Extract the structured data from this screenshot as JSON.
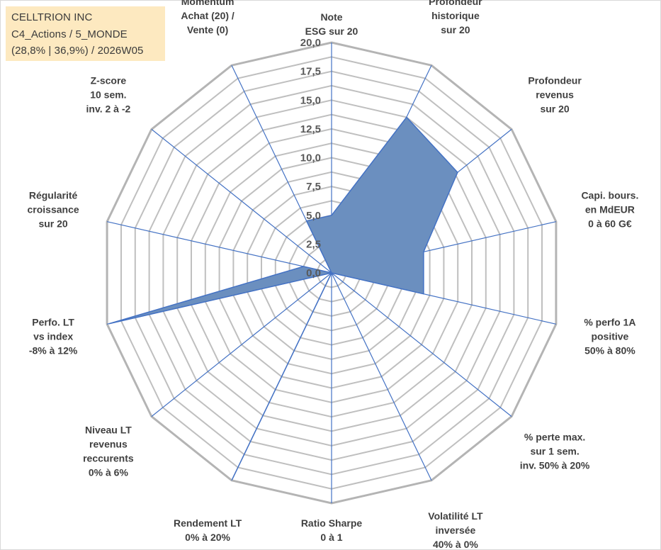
{
  "header": {
    "company": "CELLTRION INC",
    "portfolio": "C4_Actions / 5_MONDE",
    "stats": "(28,8% | 36,9%) / 2026W05"
  },
  "colors": {
    "area_fill": "#6b8fbf",
    "area_stroke": "#4472c4",
    "spoke": "#4472c4",
    "grid": "#bfbfbf",
    "title_bg": "#fde9c0"
  },
  "chart_data": {
    "type": "radar",
    "title": "",
    "rmax": 20,
    "ticks": [
      "0,0",
      "2,5",
      "5,0",
      "7,5",
      "10,0",
      "12,5",
      "15,0",
      "17,5",
      "20,0"
    ],
    "tick_values": [
      0,
      2.5,
      5,
      7.5,
      10,
      12.5,
      15,
      17.5,
      20
    ],
    "axes": [
      {
        "label": [
          "Note",
          "ESG sur 20"
        ],
        "value": 5.0
      },
      {
        "label": [
          "Profondeur",
          "historique",
          "sur 20"
        ],
        "value": 15.0
      },
      {
        "label": [
          "Profondeur",
          "revenus",
          "sur 20"
        ],
        "value": 14.0
      },
      {
        "label": [
          "Capi. bours.",
          "en MdEUR",
          "0 à 60 G€"
        ],
        "value": 8.2
      },
      {
        "label": [
          "% perfo 1A",
          "positive",
          "50% à 80%"
        ],
        "value": 8.2
      },
      {
        "label": [
          "% perte max.",
          "sur 1 sem.",
          "inv. 50% à 20%"
        ],
        "value": 0.0
      },
      {
        "label": [
          "Volatilité LT",
          "inversée",
          "40% à 0%"
        ],
        "value": 0.0
      },
      {
        "label": [
          "Ratio Sharpe",
          "0 à 1"
        ],
        "value": 0.0
      },
      {
        "label": [
          "Rendement LT",
          "0% à 20%"
        ],
        "value": 19.9
      },
      {
        "label": [
          "Niveau LT",
          "revenus",
          "reccurents",
          "0% à 6%"
        ],
        "value": 0.0
      },
      {
        "label": [
          "Perfo. LT",
          "vs index",
          "-8% à 12%"
        ],
        "value": 19.8
      },
      {
        "label": [
          "Régularité",
          "croissance",
          "sur 20"
        ],
        "value": 2.5
      },
      {
        "label": [
          "Z-score",
          "10 sem.",
          "inv. 2 à -2"
        ],
        "value": 0.0
      },
      {
        "label": [
          "Momentum",
          "Achat (20) /",
          "Vente (0)"
        ],
        "value": 5.0
      }
    ]
  }
}
